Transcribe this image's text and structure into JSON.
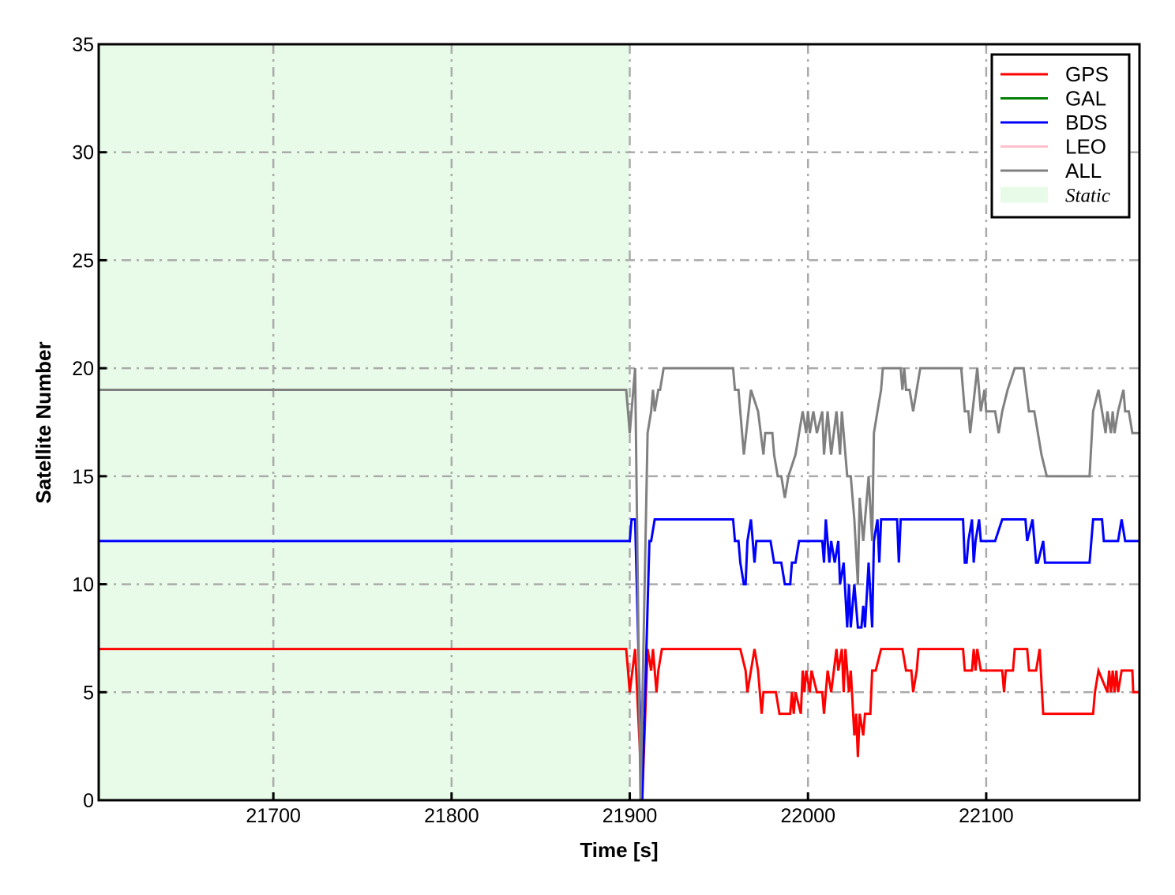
{
  "chart_data": {
    "type": "line",
    "title": "",
    "xlabel": "Time [s]",
    "ylabel": "Satellite Number",
    "xlim": [
      21602,
      22186
    ],
    "ylim": [
      0,
      35
    ],
    "xticks": [
      21700,
      21800,
      21900,
      22000,
      22100
    ],
    "yticks": [
      0,
      5,
      10,
      15,
      20,
      25,
      30,
      35
    ],
    "grid": true,
    "legend_position": "top-right",
    "shaded_region": {
      "name": "Static",
      "x": [
        21602,
        21900
      ],
      "color": "#e8fbe8"
    },
    "series": [
      {
        "name": "GPS",
        "color": "#ff0000",
        "points": [
          [
            21602,
            7
          ],
          [
            21898,
            7
          ],
          [
            21899,
            6
          ],
          [
            21900,
            5
          ],
          [
            21903,
            7
          ],
          [
            21907,
            0
          ],
          [
            21910,
            7
          ],
          [
            21912,
            6
          ],
          [
            21913,
            7
          ],
          [
            21914,
            6
          ],
          [
            21915,
            5
          ],
          [
            21916,
            6
          ],
          [
            21918,
            7
          ],
          [
            21962,
            7
          ],
          [
            21965,
            6
          ],
          [
            21966,
            5
          ],
          [
            21968,
            6
          ],
          [
            21970,
            7
          ],
          [
            21972,
            6
          ],
          [
            21974,
            4
          ],
          [
            21975,
            5
          ],
          [
            21982,
            5
          ],
          [
            21984,
            4
          ],
          [
            21990,
            4
          ],
          [
            21991,
            5
          ],
          [
            21992,
            4
          ],
          [
            21993,
            5
          ],
          [
            21996,
            4
          ],
          [
            21997,
            6
          ],
          [
            21998,
            5
          ],
          [
            21999,
            6
          ],
          [
            22001,
            5
          ],
          [
            22002,
            6
          ],
          [
            22005,
            5
          ],
          [
            22008,
            5
          ],
          [
            22009,
            4
          ],
          [
            22011,
            6
          ],
          [
            22013,
            5
          ],
          [
            22016,
            7
          ],
          [
            22017,
            6
          ],
          [
            22019,
            7
          ],
          [
            22020,
            5
          ],
          [
            22021,
            7
          ],
          [
            22023,
            5
          ],
          [
            22024,
            6
          ],
          [
            22026,
            3
          ],
          [
            22027,
            4
          ],
          [
            22028,
            2
          ],
          [
            22029,
            4
          ],
          [
            22031,
            3
          ],
          [
            22032,
            4
          ],
          [
            22035,
            4
          ],
          [
            22036,
            6
          ],
          [
            22038,
            6
          ],
          [
            22041,
            7
          ],
          [
            22053,
            7
          ],
          [
            22055,
            6
          ],
          [
            22058,
            6
          ],
          [
            22059,
            5
          ],
          [
            22061,
            6
          ],
          [
            22062,
            7
          ],
          [
            22087,
            7
          ],
          [
            22088,
            6
          ],
          [
            22092,
            6
          ],
          [
            22093,
            7
          ],
          [
            22094,
            6
          ],
          [
            22095,
            7
          ],
          [
            22097,
            6
          ],
          [
            22109,
            6
          ],
          [
            22110,
            5
          ],
          [
            22111,
            6
          ],
          [
            22115,
            6
          ],
          [
            22116,
            7
          ],
          [
            22123,
            7
          ],
          [
            22124,
            6
          ],
          [
            22128,
            6
          ],
          [
            22130,
            7
          ],
          [
            22132,
            4
          ],
          [
            22160,
            4
          ],
          [
            22161,
            5
          ],
          [
            22163,
            6
          ],
          [
            22168,
            5
          ],
          [
            22169,
            6
          ],
          [
            22170,
            5
          ],
          [
            22171,
            6
          ],
          [
            22172,
            5
          ],
          [
            22173,
            6
          ],
          [
            22174,
            5
          ],
          [
            22176,
            6
          ],
          [
            22182,
            6
          ],
          [
            22182.5,
            5
          ],
          [
            22186,
            5
          ]
        ]
      },
      {
        "name": "GAL",
        "color": "#008000",
        "points": []
      },
      {
        "name": "BDS",
        "color": "#0000ff",
        "points": [
          [
            21602,
            12
          ],
          [
            21900,
            12
          ],
          [
            21901,
            13
          ],
          [
            21903,
            13
          ],
          [
            21907,
            0
          ],
          [
            21911,
            12
          ],
          [
            21912,
            12
          ],
          [
            21914,
            13
          ],
          [
            21958,
            13
          ],
          [
            21959,
            12
          ],
          [
            21961,
            12
          ],
          [
            21962,
            11
          ],
          [
            21964,
            10
          ],
          [
            21965,
            10
          ],
          [
            21966,
            12
          ],
          [
            21968,
            13
          ],
          [
            21970,
            11
          ],
          [
            21971,
            12
          ],
          [
            21979,
            12
          ],
          [
            21981,
            11
          ],
          [
            21985,
            11
          ],
          [
            21987,
            10
          ],
          [
            21990,
            10
          ],
          [
            21991,
            11
          ],
          [
            21993,
            11
          ],
          [
            21995,
            12
          ],
          [
            22008,
            12
          ],
          [
            22009,
            11
          ],
          [
            22010,
            13
          ],
          [
            22012,
            11
          ],
          [
            22013,
            12
          ],
          [
            22015,
            11
          ],
          [
            22017,
            12
          ],
          [
            22018,
            10
          ],
          [
            22020,
            11
          ],
          [
            22022,
            8
          ],
          [
            22023,
            10
          ],
          [
            22024,
            8
          ],
          [
            22026,
            10
          ],
          [
            22028,
            8
          ],
          [
            22030,
            8
          ],
          [
            22031,
            9
          ],
          [
            22032,
            8
          ],
          [
            22034,
            11
          ],
          [
            22036,
            8
          ],
          [
            22037,
            12
          ],
          [
            22039,
            13
          ],
          [
            22040,
            11
          ],
          [
            22041,
            13
          ],
          [
            22050,
            13
          ],
          [
            22051,
            11
          ],
          [
            22052,
            13
          ],
          [
            22087,
            13
          ],
          [
            22088,
            11
          ],
          [
            22089,
            11
          ],
          [
            22090,
            12
          ],
          [
            22092,
            13
          ],
          [
            22093,
            11
          ],
          [
            22094,
            12
          ],
          [
            22096,
            13
          ],
          [
            22097,
            12
          ],
          [
            22105,
            12
          ],
          [
            22109,
            13
          ],
          [
            22122,
            13
          ],
          [
            22123,
            12
          ],
          [
            22126,
            13
          ],
          [
            22128,
            11
          ],
          [
            22129,
            11
          ],
          [
            22132,
            12
          ],
          [
            22133,
            11
          ],
          [
            22158,
            11
          ],
          [
            22160,
            13
          ],
          [
            22165,
            13
          ],
          [
            22166,
            12
          ],
          [
            22174,
            12
          ],
          [
            22176,
            13
          ],
          [
            22178,
            12
          ],
          [
            22186,
            12
          ]
        ]
      },
      {
        "name": "LEO",
        "color": "#ffc0cb",
        "points": []
      },
      {
        "name": "ALL",
        "color": "#808080",
        "points": [
          [
            21602,
            19
          ],
          [
            21898,
            19
          ],
          [
            21899,
            18
          ],
          [
            21900,
            17
          ],
          [
            21903,
            20
          ],
          [
            21906,
            0
          ],
          [
            21910,
            17
          ],
          [
            21912,
            18
          ],
          [
            21913,
            19
          ],
          [
            21914,
            18
          ],
          [
            21916,
            19
          ],
          [
            21917,
            19
          ],
          [
            21919,
            20
          ],
          [
            21958,
            20
          ],
          [
            21959,
            19
          ],
          [
            21961,
            19
          ],
          [
            21964,
            16
          ],
          [
            21968,
            19
          ],
          [
            21972,
            18
          ],
          [
            21975,
            16
          ],
          [
            21976,
            17
          ],
          [
            21980,
            17
          ],
          [
            21981,
            16
          ],
          [
            21983,
            15
          ],
          [
            21985,
            15
          ],
          [
            21987,
            14
          ],
          [
            21989,
            15
          ],
          [
            21993,
            16
          ],
          [
            21997,
            18
          ],
          [
            21999,
            17
          ],
          [
            22000,
            18
          ],
          [
            22001,
            17
          ],
          [
            22003,
            18
          ],
          [
            22005,
            17
          ],
          [
            22008,
            18
          ],
          [
            22009,
            16
          ],
          [
            22011,
            18
          ],
          [
            22013,
            16
          ],
          [
            22016,
            18
          ],
          [
            22018,
            16
          ],
          [
            22019,
            18
          ],
          [
            22022,
            15
          ],
          [
            22024,
            15
          ],
          [
            22026,
            13
          ],
          [
            22028,
            10
          ],
          [
            22029,
            14
          ],
          [
            22031,
            12
          ],
          [
            22034,
            15
          ],
          [
            22036,
            12
          ],
          [
            22037,
            17
          ],
          [
            22039,
            18
          ],
          [
            22041,
            19
          ],
          [
            22042,
            20
          ],
          [
            22052,
            20
          ],
          [
            22053,
            19
          ],
          [
            22054,
            20
          ],
          [
            22055,
            19
          ],
          [
            22057,
            19
          ],
          [
            22059,
            18
          ],
          [
            22063,
            20
          ],
          [
            22086,
            20
          ],
          [
            22088,
            18
          ],
          [
            22090,
            18
          ],
          [
            22091,
            17
          ],
          [
            22095,
            20
          ],
          [
            22097,
            18
          ],
          [
            22099,
            19
          ],
          [
            22100,
            18
          ],
          [
            22105,
            18
          ],
          [
            22107,
            17
          ],
          [
            22109,
            18
          ],
          [
            22112,
            19
          ],
          [
            22116,
            20
          ],
          [
            22121,
            20
          ],
          [
            22124,
            18
          ],
          [
            22127,
            18
          ],
          [
            22131,
            16
          ],
          [
            22134,
            15
          ],
          [
            22158,
            15
          ],
          [
            22160,
            18
          ],
          [
            22163,
            19
          ],
          [
            22167,
            17
          ],
          [
            22168,
            18
          ],
          [
            22170,
            17
          ],
          [
            22171,
            18
          ],
          [
            22172,
            17
          ],
          [
            22174,
            18
          ],
          [
            22177,
            19
          ],
          [
            22178,
            18
          ],
          [
            22180,
            18
          ],
          [
            22182,
            17
          ],
          [
            22186,
            17
          ]
        ]
      }
    ]
  }
}
